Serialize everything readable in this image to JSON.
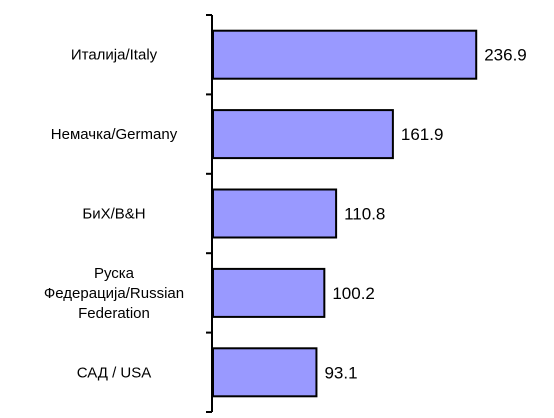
{
  "chart_data": {
    "type": "bar",
    "orientation": "horizontal",
    "title": "",
    "xlabel": "",
    "ylabel": "",
    "categories": [
      [
        "Италија/Italy"
      ],
      [
        "Немачка/Germany"
      ],
      [
        "БиХ/B&H"
      ],
      [
        "Руска",
        "Федерација/Russian",
        "Federation"
      ],
      [
        "САД / USA"
      ]
    ],
    "values": [
      236.9,
      161.9,
      110.8,
      100.2,
      93.1
    ],
    "value_labels": [
      "236.9",
      "161.9",
      "110.8",
      "100.2",
      "93.1"
    ],
    "xlim": [
      0,
      270
    ],
    "grid": false,
    "legend": "none",
    "colors": {
      "bar_fill": "#9999ff",
      "bar_stroke": "#000000",
      "axis": "#000000"
    }
  }
}
